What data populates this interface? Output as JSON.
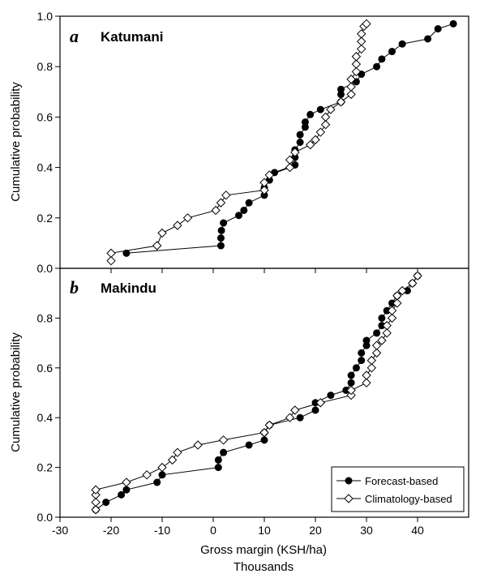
{
  "chart_data": [
    {
      "type": "line",
      "panel_letter": "a",
      "title": "Katumani",
      "xlabel": "",
      "ylabel": "Cumulative probability",
      "xlim": [
        -30,
        50
      ],
      "ylim": [
        0.0,
        1.0
      ],
      "y_ticks": [
        "0.0",
        "0.2",
        "0.4",
        "0.6",
        "0.8",
        "1.0"
      ],
      "grid": false,
      "series": [
        {
          "name": "Forecast-based",
          "marker": "filled-circle",
          "points": [
            [
              -17,
              0.06
            ],
            [
              1.5,
              0.09
            ],
            [
              1.5,
              0.12
            ],
            [
              1.6,
              0.15
            ],
            [
              2,
              0.18
            ],
            [
              5,
              0.21
            ],
            [
              6,
              0.23
            ],
            [
              7,
              0.26
            ],
            [
              10,
              0.29
            ],
            [
              10,
              0.32
            ],
            [
              11,
              0.35
            ],
            [
              12,
              0.38
            ],
            [
              16,
              0.41
            ],
            [
              16,
              0.44
            ],
            [
              16,
              0.47
            ],
            [
              17,
              0.5
            ],
            [
              17,
              0.53
            ],
            [
              18,
              0.56
            ],
            [
              18,
              0.58
            ],
            [
              19,
              0.61
            ],
            [
              21,
              0.63
            ],
            [
              25,
              0.66
            ],
            [
              25,
              0.69
            ],
            [
              25,
              0.71
            ],
            [
              28,
              0.74
            ],
            [
              29,
              0.77
            ],
            [
              32,
              0.8
            ],
            [
              33,
              0.83
            ],
            [
              35,
              0.86
            ],
            [
              37,
              0.89
            ],
            [
              42,
              0.91
            ],
            [
              44,
              0.95
            ],
            [
              47,
              0.97
            ]
          ]
        },
        {
          "name": "Climatology-based",
          "marker": "open-diamond",
          "points": [
            [
              -20,
              0.03
            ],
            [
              -20,
              0.06
            ],
            [
              -11,
              0.09
            ],
            [
              -10,
              0.14
            ],
            [
              -7,
              0.17
            ],
            [
              -5,
              0.2
            ],
            [
              0.5,
              0.23
            ],
            [
              1.5,
              0.26
            ],
            [
              2.5,
              0.29
            ],
            [
              10,
              0.31
            ],
            [
              10,
              0.34
            ],
            [
              11,
              0.37
            ],
            [
              15,
              0.4
            ],
            [
              15,
              0.43
            ],
            [
              16,
              0.46
            ],
            [
              19,
              0.49
            ],
            [
              20,
              0.51
            ],
            [
              21,
              0.54
            ],
            [
              22,
              0.57
            ],
            [
              22,
              0.6
            ],
            [
              23,
              0.63
            ],
            [
              25,
              0.66
            ],
            [
              27,
              0.69
            ],
            [
              27,
              0.72
            ],
            [
              27,
              0.75
            ],
            [
              28,
              0.78
            ],
            [
              28,
              0.81
            ],
            [
              28,
              0.84
            ],
            [
              29,
              0.87
            ],
            [
              29,
              0.9
            ],
            [
              29,
              0.93
            ],
            [
              29.5,
              0.96
            ],
            [
              30,
              0.97
            ]
          ]
        }
      ]
    },
    {
      "type": "line",
      "panel_letter": "b",
      "title": "Makindu",
      "xlabel": "Gross margin (KSH/ha)",
      "xlabel_units": "Thousands",
      "ylabel": "Cumulative probability",
      "xlim": [
        -30,
        50
      ],
      "ylim": [
        0.0,
        1.0
      ],
      "x_ticks": [
        "-30",
        "-20",
        "-10",
        "0",
        "10",
        "20",
        "30",
        "40"
      ],
      "y_ticks": [
        "0.0",
        "0.2",
        "0.4",
        "0.6",
        "0.8"
      ],
      "grid": false,
      "legend": "bottom-right",
      "series": [
        {
          "name": "Forecast-based",
          "marker": "filled-circle",
          "points": [
            [
              -23,
              0.03
            ],
            [
              -21,
              0.06
            ],
            [
              -18,
              0.09
            ],
            [
              -17,
              0.11
            ],
            [
              -11,
              0.14
            ],
            [
              -10,
              0.17
            ],
            [
              1,
              0.2
            ],
            [
              1,
              0.23
            ],
            [
              2,
              0.26
            ],
            [
              7,
              0.29
            ],
            [
              10,
              0.31
            ],
            [
              10,
              0.34
            ],
            [
              11,
              0.37
            ],
            [
              17,
              0.4
            ],
            [
              20,
              0.43
            ],
            [
              20,
              0.46
            ],
            [
              23,
              0.49
            ],
            [
              26,
              0.51
            ],
            [
              27,
              0.54
            ],
            [
              27,
              0.57
            ],
            [
              28,
              0.6
            ],
            [
              29,
              0.63
            ],
            [
              29,
              0.66
            ],
            [
              30,
              0.69
            ],
            [
              30,
              0.71
            ],
            [
              32,
              0.74
            ],
            [
              33,
              0.77
            ],
            [
              33,
              0.8
            ],
            [
              34,
              0.83
            ],
            [
              35,
              0.86
            ],
            [
              36,
              0.89
            ],
            [
              38,
              0.91
            ],
            [
              39,
              0.94
            ],
            [
              40,
              0.97
            ]
          ]
        },
        {
          "name": "Climatology-based",
          "marker": "open-diamond",
          "points": [
            [
              -23,
              0.03
            ],
            [
              -23,
              0.06
            ],
            [
              -23,
              0.09
            ],
            [
              -23,
              0.11
            ],
            [
              -17,
              0.14
            ],
            [
              -13,
              0.17
            ],
            [
              -10,
              0.2
            ],
            [
              -8,
              0.23
            ],
            [
              -7,
              0.26
            ],
            [
              -3,
              0.29
            ],
            [
              2,
              0.31
            ],
            [
              10,
              0.34
            ],
            [
              11,
              0.37
            ],
            [
              15,
              0.4
            ],
            [
              16,
              0.43
            ],
            [
              21,
              0.46
            ],
            [
              27,
              0.49
            ],
            [
              27,
              0.51
            ],
            [
              30,
              0.54
            ],
            [
              30,
              0.57
            ],
            [
              31,
              0.6
            ],
            [
              31,
              0.63
            ],
            [
              32,
              0.66
            ],
            [
              32,
              0.69
            ],
            [
              33,
              0.71
            ],
            [
              34,
              0.74
            ],
            [
              34,
              0.77
            ],
            [
              35,
              0.8
            ],
            [
              35,
              0.83
            ],
            [
              36,
              0.86
            ],
            [
              36,
              0.89
            ],
            [
              37,
              0.91
            ],
            [
              39,
              0.94
            ],
            [
              40,
              0.97
            ]
          ]
        }
      ]
    }
  ]
}
